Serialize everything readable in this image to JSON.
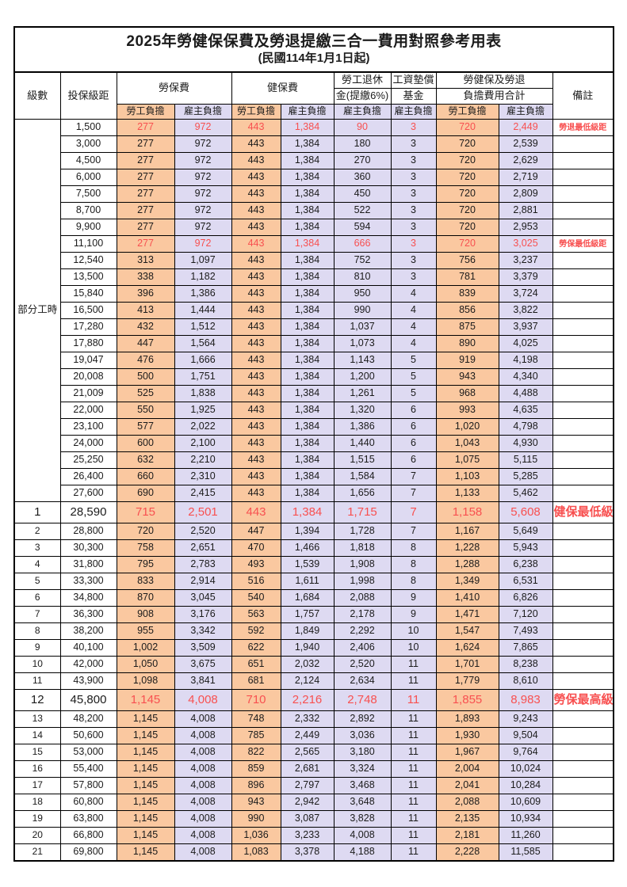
{
  "title": "2025年勞健保保費及勞退提繳三合一費用對照參考用表",
  "subtitle": "(民國114年1月1日起)",
  "header": {
    "level": "級數",
    "bracket": "投保級距",
    "labor_group": "勞保費",
    "health_group": "健保費",
    "pension_line1": "勞工退休",
    "pension_line2": "金(提繳6%)",
    "wage_fund_line1": "工資墊償",
    "wage_fund_line2": "基金",
    "total_line1": "勞健保及勞退",
    "total_line2": "負擔費用合計",
    "remark": "備註",
    "employee_label": "勞工負擔",
    "employer_label": "雇主負擔"
  },
  "part_time_label": "部分工時",
  "part_time_rowspan": 23,
  "colors": {
    "employee_bg": "#FAC8A0",
    "employer_bg": "#DEDAF2",
    "highlight_text": "#F85050",
    "border": "#000000"
  },
  "rows": [
    {
      "level": null,
      "bracket": "1,500",
      "values": [
        "277",
        "972",
        "443",
        "1,384",
        "90",
        "3",
        "720",
        "2,449"
      ],
      "note": "勞退最低級距",
      "highlight": true,
      "large": false
    },
    {
      "level": null,
      "bracket": "3,000",
      "values": [
        "277",
        "972",
        "443",
        "1,384",
        "180",
        "3",
        "720",
        "2,539"
      ],
      "note": "",
      "highlight": false,
      "large": false
    },
    {
      "level": null,
      "bracket": "4,500",
      "values": [
        "277",
        "972",
        "443",
        "1,384",
        "270",
        "3",
        "720",
        "2,629"
      ],
      "note": "",
      "highlight": false,
      "large": false
    },
    {
      "level": null,
      "bracket": "6,000",
      "values": [
        "277",
        "972",
        "443",
        "1,384",
        "360",
        "3",
        "720",
        "2,719"
      ],
      "note": "",
      "highlight": false,
      "large": false
    },
    {
      "level": null,
      "bracket": "7,500",
      "values": [
        "277",
        "972",
        "443",
        "1,384",
        "450",
        "3",
        "720",
        "2,809"
      ],
      "note": "",
      "highlight": false,
      "large": false
    },
    {
      "level": null,
      "bracket": "8,700",
      "values": [
        "277",
        "972",
        "443",
        "1,384",
        "522",
        "3",
        "720",
        "2,881"
      ],
      "note": "",
      "highlight": false,
      "large": false
    },
    {
      "level": null,
      "bracket": "9,900",
      "values": [
        "277",
        "972",
        "443",
        "1,384",
        "594",
        "3",
        "720",
        "2,953"
      ],
      "note": "",
      "highlight": false,
      "large": false
    },
    {
      "level": null,
      "bracket": "11,100",
      "values": [
        "277",
        "972",
        "443",
        "1,384",
        "666",
        "3",
        "720",
        "3,025"
      ],
      "note": "勞保最低級距",
      "highlight": true,
      "large": false
    },
    {
      "level": null,
      "bracket": "12,540",
      "values": [
        "313",
        "1,097",
        "443",
        "1,384",
        "752",
        "3",
        "756",
        "3,237"
      ],
      "note": "",
      "highlight": false,
      "large": false
    },
    {
      "level": null,
      "bracket": "13,500",
      "values": [
        "338",
        "1,182",
        "443",
        "1,384",
        "810",
        "3",
        "781",
        "3,379"
      ],
      "note": "",
      "highlight": false,
      "large": false
    },
    {
      "level": null,
      "bracket": "15,840",
      "values": [
        "396",
        "1,386",
        "443",
        "1,384",
        "950",
        "4",
        "839",
        "3,724"
      ],
      "note": "",
      "highlight": false,
      "large": false
    },
    {
      "level": null,
      "bracket": "16,500",
      "values": [
        "413",
        "1,444",
        "443",
        "1,384",
        "990",
        "4",
        "856",
        "3,822"
      ],
      "note": "",
      "highlight": false,
      "large": false
    },
    {
      "level": null,
      "bracket": "17,280",
      "values": [
        "432",
        "1,512",
        "443",
        "1,384",
        "1,037",
        "4",
        "875",
        "3,937"
      ],
      "note": "",
      "highlight": false,
      "large": false
    },
    {
      "level": null,
      "bracket": "17,880",
      "values": [
        "447",
        "1,564",
        "443",
        "1,384",
        "1,073",
        "4",
        "890",
        "4,025"
      ],
      "note": "",
      "highlight": false,
      "large": false
    },
    {
      "level": null,
      "bracket": "19,047",
      "values": [
        "476",
        "1,666",
        "443",
        "1,384",
        "1,143",
        "5",
        "919",
        "4,198"
      ],
      "note": "",
      "highlight": false,
      "large": false
    },
    {
      "level": null,
      "bracket": "20,008",
      "values": [
        "500",
        "1,751",
        "443",
        "1,384",
        "1,200",
        "5",
        "943",
        "4,340"
      ],
      "note": "",
      "highlight": false,
      "large": false
    },
    {
      "level": null,
      "bracket": "21,009",
      "values": [
        "525",
        "1,838",
        "443",
        "1,384",
        "1,261",
        "5",
        "968",
        "4,488"
      ],
      "note": "",
      "highlight": false,
      "large": false
    },
    {
      "level": null,
      "bracket": "22,000",
      "values": [
        "550",
        "1,925",
        "443",
        "1,384",
        "1,320",
        "6",
        "993",
        "4,635"
      ],
      "note": "",
      "highlight": false,
      "large": false
    },
    {
      "level": null,
      "bracket": "23,100",
      "values": [
        "577",
        "2,022",
        "443",
        "1,384",
        "1,386",
        "6",
        "1,020",
        "4,798"
      ],
      "note": "",
      "highlight": false,
      "large": false
    },
    {
      "level": null,
      "bracket": "24,000",
      "values": [
        "600",
        "2,100",
        "443",
        "1,384",
        "1,440",
        "6",
        "1,043",
        "4,930"
      ],
      "note": "",
      "highlight": false,
      "large": false
    },
    {
      "level": null,
      "bracket": "25,250",
      "values": [
        "632",
        "2,210",
        "443",
        "1,384",
        "1,515",
        "6",
        "1,075",
        "5,115"
      ],
      "note": "",
      "highlight": false,
      "large": false
    },
    {
      "level": null,
      "bracket": "26,400",
      "values": [
        "660",
        "2,310",
        "443",
        "1,384",
        "1,584",
        "7",
        "1,103",
        "5,285"
      ],
      "note": "",
      "highlight": false,
      "large": false
    },
    {
      "level": null,
      "bracket": "27,600",
      "values": [
        "690",
        "2,415",
        "443",
        "1,384",
        "1,656",
        "7",
        "1,133",
        "5,462"
      ],
      "note": "",
      "highlight": false,
      "large": false
    },
    {
      "level": "1",
      "bracket": "28,590",
      "values": [
        "715",
        "2,501",
        "443",
        "1,384",
        "1,715",
        "7",
        "1,158",
        "5,608"
      ],
      "note": "健保最低級距",
      "highlight": true,
      "large": true
    },
    {
      "level": "2",
      "bracket": "28,800",
      "values": [
        "720",
        "2,520",
        "447",
        "1,394",
        "1,728",
        "7",
        "1,167",
        "5,649"
      ],
      "note": "",
      "highlight": false,
      "large": false
    },
    {
      "level": "3",
      "bracket": "30,300",
      "values": [
        "758",
        "2,651",
        "470",
        "1,466",
        "1,818",
        "8",
        "1,228",
        "5,943"
      ],
      "note": "",
      "highlight": false,
      "large": false
    },
    {
      "level": "4",
      "bracket": "31,800",
      "values": [
        "795",
        "2,783",
        "493",
        "1,539",
        "1,908",
        "8",
        "1,288",
        "6,238"
      ],
      "note": "",
      "highlight": false,
      "large": false
    },
    {
      "level": "5",
      "bracket": "33,300",
      "values": [
        "833",
        "2,914",
        "516",
        "1,611",
        "1,998",
        "8",
        "1,349",
        "6,531"
      ],
      "note": "",
      "highlight": false,
      "large": false
    },
    {
      "level": "6",
      "bracket": "34,800",
      "values": [
        "870",
        "3,045",
        "540",
        "1,684",
        "2,088",
        "9",
        "1,410",
        "6,826"
      ],
      "note": "",
      "highlight": false,
      "large": false
    },
    {
      "level": "7",
      "bracket": "36,300",
      "values": [
        "908",
        "3,176",
        "563",
        "1,757",
        "2,178",
        "9",
        "1,471",
        "7,120"
      ],
      "note": "",
      "highlight": false,
      "large": false
    },
    {
      "level": "8",
      "bracket": "38,200",
      "values": [
        "955",
        "3,342",
        "592",
        "1,849",
        "2,292",
        "10",
        "1,547",
        "7,493"
      ],
      "note": "",
      "highlight": false,
      "large": false
    },
    {
      "level": "9",
      "bracket": "40,100",
      "values": [
        "1,002",
        "3,509",
        "622",
        "1,940",
        "2,406",
        "10",
        "1,624",
        "7,865"
      ],
      "note": "",
      "highlight": false,
      "large": false
    },
    {
      "level": "10",
      "bracket": "42,000",
      "values": [
        "1,050",
        "3,675",
        "651",
        "2,032",
        "2,520",
        "11",
        "1,701",
        "8,238"
      ],
      "note": "",
      "highlight": false,
      "large": false
    },
    {
      "level": "11",
      "bracket": "43,900",
      "values": [
        "1,098",
        "3,841",
        "681",
        "2,124",
        "2,634",
        "11",
        "1,779",
        "8,610"
      ],
      "note": "",
      "highlight": false,
      "large": false
    },
    {
      "level": "12",
      "bracket": "45,800",
      "values": [
        "1,145",
        "4,008",
        "710",
        "2,216",
        "2,748",
        "11",
        "1,855",
        "8,983"
      ],
      "note": "勞保最高級距",
      "highlight": true,
      "large": true
    },
    {
      "level": "13",
      "bracket": "48,200",
      "values": [
        "1,145",
        "4,008",
        "748",
        "2,332",
        "2,892",
        "11",
        "1,893",
        "9,243"
      ],
      "note": "",
      "highlight": false,
      "large": false
    },
    {
      "level": "14",
      "bracket": "50,600",
      "values": [
        "1,145",
        "4,008",
        "785",
        "2,449",
        "3,036",
        "11",
        "1,930",
        "9,504"
      ],
      "note": "",
      "highlight": false,
      "large": false
    },
    {
      "level": "15",
      "bracket": "53,000",
      "values": [
        "1,145",
        "4,008",
        "822",
        "2,565",
        "3,180",
        "11",
        "1,967",
        "9,764"
      ],
      "note": "",
      "highlight": false,
      "large": false
    },
    {
      "level": "16",
      "bracket": "55,400",
      "values": [
        "1,145",
        "4,008",
        "859",
        "2,681",
        "3,324",
        "11",
        "2,004",
        "10,024"
      ],
      "note": "",
      "highlight": false,
      "large": false
    },
    {
      "level": "17",
      "bracket": "57,800",
      "values": [
        "1,145",
        "4,008",
        "896",
        "2,797",
        "3,468",
        "11",
        "2,041",
        "10,284"
      ],
      "note": "",
      "highlight": false,
      "large": false
    },
    {
      "level": "18",
      "bracket": "60,800",
      "values": [
        "1,145",
        "4,008",
        "943",
        "2,942",
        "3,648",
        "11",
        "2,088",
        "10,609"
      ],
      "note": "",
      "highlight": false,
      "large": false
    },
    {
      "level": "19",
      "bracket": "63,800",
      "values": [
        "1,145",
        "4,008",
        "990",
        "3,087",
        "3,828",
        "11",
        "2,135",
        "10,934"
      ],
      "note": "",
      "highlight": false,
      "large": false
    },
    {
      "level": "20",
      "bracket": "66,800",
      "values": [
        "1,145",
        "4,008",
        "1,036",
        "3,233",
        "4,008",
        "11",
        "2,181",
        "11,260"
      ],
      "note": "",
      "highlight": false,
      "large": false
    },
    {
      "level": "21",
      "bracket": "69,800",
      "values": [
        "1,145",
        "4,008",
        "1,083",
        "3,378",
        "4,188",
        "11",
        "2,228",
        "11,585"
      ],
      "note": "",
      "highlight": false,
      "large": false
    }
  ]
}
